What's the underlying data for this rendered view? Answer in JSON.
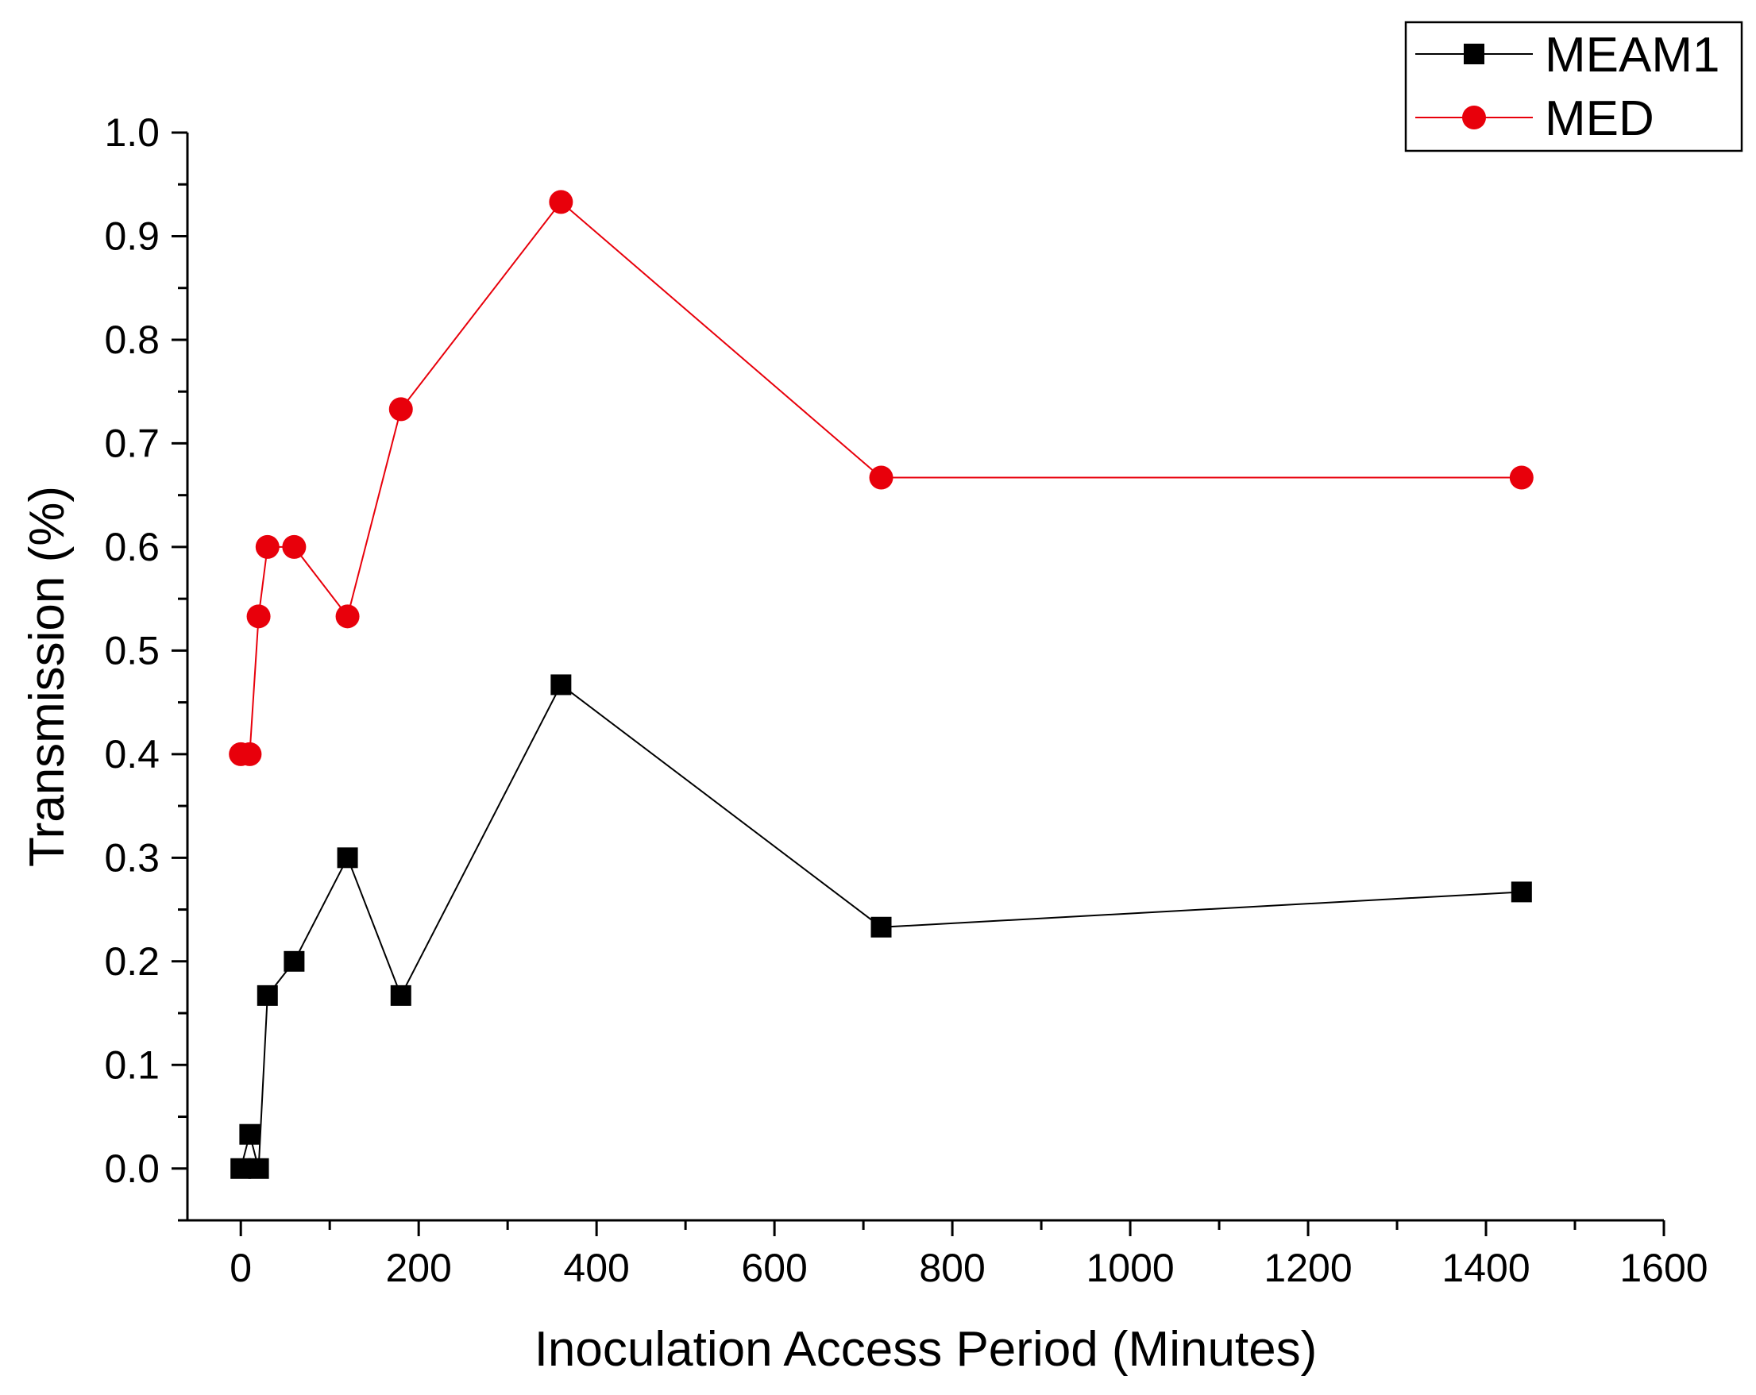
{
  "chart_data": {
    "type": "line",
    "title": "",
    "xlabel": "Inoculation Access Period (Minutes)",
    "ylabel": "Transmission (%)",
    "xlim": [
      -60,
      1600
    ],
    "ylim": [
      -0.05,
      1.0
    ],
    "xticks": [
      0,
      200,
      400,
      600,
      800,
      1000,
      1200,
      1400,
      1600
    ],
    "yticks": [
      0.0,
      0.1,
      0.2,
      0.3,
      0.4,
      0.5,
      0.6,
      0.7,
      0.8,
      0.9,
      1.0
    ],
    "xtick_labels": [
      "0",
      "200",
      "400",
      "600",
      "800",
      "1000",
      "1200",
      "1400",
      "1600"
    ],
    "ytick_labels": [
      "0.0",
      "0.1",
      "0.2",
      "0.3",
      "0.4",
      "0.5",
      "0.6",
      "0.7",
      "0.8",
      "0.9",
      "1.0"
    ],
    "grid": false,
    "legend_position": "top-right",
    "series": [
      {
        "name": "MEAM1",
        "color": "#000000",
        "marker": "square",
        "x": [
          0,
          10,
          20,
          30,
          60,
          120,
          180,
          360,
          720,
          1440
        ],
        "y": [
          0.0,
          0.033,
          0.0,
          0.167,
          0.2,
          0.3,
          0.167,
          0.467,
          0.233,
          0.267
        ]
      },
      {
        "name": "MED",
        "color": "#e8000b",
        "marker": "circle",
        "x": [
          0,
          10,
          20,
          30,
          60,
          120,
          180,
          360,
          720,
          1440
        ],
        "y": [
          0.4,
          0.4,
          0.533,
          0.6,
          0.6,
          0.533,
          0.733,
          0.933,
          0.667,
          0.667
        ]
      }
    ]
  }
}
